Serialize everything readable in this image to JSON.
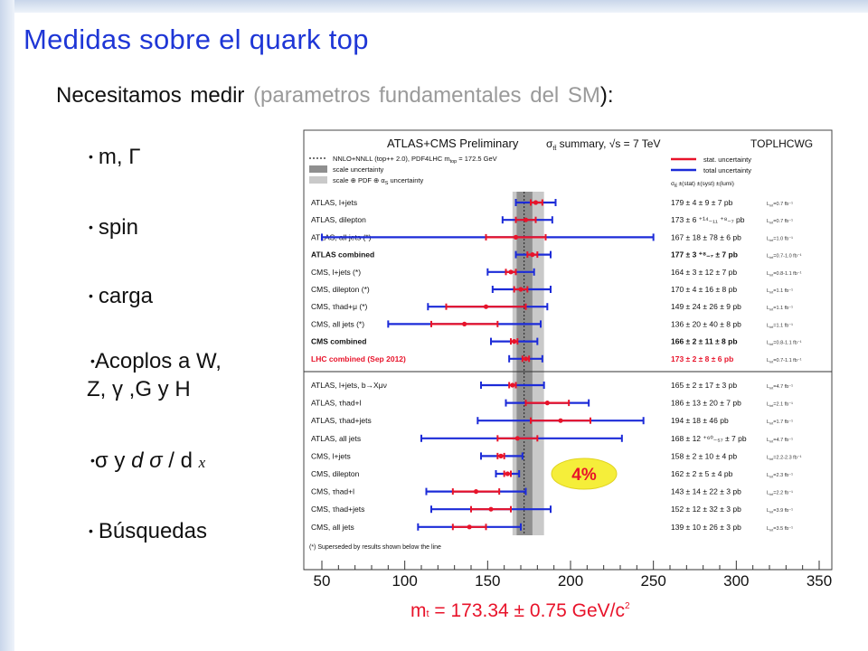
{
  "slide": {
    "title": "Medidas sobre el quark top",
    "subtitle_main": "Necesitamos medir ",
    "subtitle_paren": "(parametros fundamentales del SM",
    "subtitle_close": "):",
    "bullets": {
      "b1": "m, Γ",
      "b2": "spin",
      "b3": "carga",
      "b4_line1": "Acoplos a W,",
      "b4_line2": "Z, γ ,G y H",
      "b5_a": "σ y ",
      "b5_b": "d σ",
      "b5_c": " / d ",
      "b5_x": "x",
      "b6": "Búsquedas",
      "bullet_glyph": "•"
    },
    "result": {
      "m": "m",
      "sub": "t",
      "text": " = 173.34 ± 0.75 GeV/c",
      "sup": "2"
    }
  },
  "chart_data": {
    "type": "scatter",
    "title": "ATLAS+CMS Preliminary",
    "summary_label": "σ",
    "summary_sub": "tt̄",
    "summary_rest": " summary, √s = 7 TeV",
    "group_label": "TOPLHCWG",
    "legend": {
      "theory": "NNLO+NNLL (top++ 2.0), PDF4LHC m",
      "theory_sub": "top",
      "theory_end": " = 172.5 GeV",
      "scale": "scale uncertainty",
      "scale_pdf": "scale ⊕ PDF ⊕ α",
      "scale_pdf_sub": "S",
      "scale_pdf_end": " uncertainty",
      "stat": "stat. uncertainty",
      "total": "total uncertainty",
      "format": "σ",
      "format_sub": "tt̄",
      "format_rest": " ±(stat) ±(syst) ±(lumi)"
    },
    "colors": {
      "stat": "#e8132a",
      "total": "#1c2bd8",
      "band_scale": "#8f8f8f",
      "band_total": "#c9c9c9",
      "highlight": "#f5ee3a",
      "lhc": "#e8132a"
    },
    "x_ticks": [
      50,
      100,
      150,
      200,
      250,
      300,
      350
    ],
    "xlim": [
      50,
      350
    ],
    "theory": {
      "central": 172,
      "scale": [
        167.5,
        177
      ],
      "total": [
        165,
        184
      ]
    },
    "badge": "4%",
    "top_rows": [
      {
        "label": "ATLAS, l+jets",
        "value": 179,
        "stat": [
          176,
          183
        ],
        "total": [
          167,
          191
        ],
        "result": "179 ± 4 ± 9 ± 7 pb",
        "lumi": "L",
        "lumi_sub": "int",
        "lumi_val": "=0.7 fb⁻¹",
        "bold": false,
        "red": false
      },
      {
        "label": "ATLAS, dilepton",
        "value": 173,
        "stat": [
          167,
          179
        ],
        "total": [
          159,
          189
        ],
        "result": "173 ± 6 ⁺¹⁴₋₁₁ ⁺⁸₋₇ pb",
        "lumi": "L",
        "lumi_sub": "int",
        "lumi_val": "=0.7 fb⁻¹",
        "bold": false,
        "red": false
      },
      {
        "label": "ATLAS, all jets (*)",
        "value": 167,
        "stat": [
          149,
          185
        ],
        "total": [
          50,
          250
        ],
        "result": "167 ± 18 ± 78 ± 6 pb",
        "lumi": "L",
        "lumi_sub": "int",
        "lumi_val": "=1.0 fb⁻¹",
        "bold": false,
        "red": false
      },
      {
        "label": "ATLAS combined",
        "value": 177,
        "stat": [
          174,
          180
        ],
        "total": [
          167,
          188
        ],
        "result": "177 ± 3 ⁺⁸₋₇ ± 7 pb",
        "lumi": "L",
        "lumi_sub": "int",
        "lumi_val": "=0.7-1.0 fb⁻¹",
        "bold": true,
        "red": false
      },
      {
        "label": "CMS, l+jets (*)",
        "value": 164,
        "stat": [
          161,
          167
        ],
        "total": [
          150,
          178
        ],
        "result": "164 ± 3 ± 12 ± 7 pb",
        "lumi": "L",
        "lumi_sub": "int",
        "lumi_val": "=0.8-1.1 fb⁻¹",
        "bold": false,
        "red": false
      },
      {
        "label": "CMS, dilepton (*)",
        "value": 170,
        "stat": [
          166,
          174
        ],
        "total": [
          153,
          188
        ],
        "result": "170 ± 4 ± 16 ± 8 pb",
        "lumi": "L",
        "lumi_sub": "int",
        "lumi_val": "=1.1 fb⁻¹",
        "bold": false,
        "red": false
      },
      {
        "label": "CMS, τhad+μ (*)",
        "value": 149,
        "stat": [
          125,
          173
        ],
        "total": [
          114,
          186
        ],
        "result": "149 ± 24 ± 26 ± 9 pb",
        "lumi": "L",
        "lumi_sub": "int",
        "lumi_val": "=1.1 fb⁻¹",
        "bold": false,
        "red": false
      },
      {
        "label": "CMS, all jets (*)",
        "value": 136,
        "stat": [
          116,
          156
        ],
        "total": [
          90,
          182
        ],
        "result": "136 ± 20 ± 40 ± 8 pb",
        "lumi": "L",
        "lumi_sub": "int",
        "lumi_val": "=1.1 fb⁻¹",
        "bold": false,
        "red": false
      },
      {
        "label": "CMS combined",
        "value": 166,
        "stat": [
          164,
          168
        ],
        "total": [
          152,
          180
        ],
        "result": "166 ± 2 ± 11 ± 8 pb",
        "lumi": "L",
        "lumi_sub": "int",
        "lumi_val": "=0.8-1.1 fb⁻¹",
        "bold": true,
        "red": false
      },
      {
        "label": "LHC combined (Sep 2012)",
        "value": 173,
        "stat": [
          171,
          175
        ],
        "total": [
          163,
          183
        ],
        "result": "173 ± 2 ± 8 ± 6 pb",
        "lumi": "L",
        "lumi_sub": "int",
        "lumi_val": "=0.7-1.1 fb⁻¹",
        "bold": true,
        "red": true
      }
    ],
    "bottom_rows": [
      {
        "label": "ATLAS, l+jets, b→Xμν",
        "value": 165,
        "stat": [
          163,
          167
        ],
        "total": [
          146,
          184
        ],
        "result": "165 ± 2 ± 17 ± 3 pb",
        "lumi": "L",
        "lumi_sub": "int",
        "lumi_val": "=4.7 fb⁻¹",
        "bold": false,
        "red": false
      },
      {
        "label": "ATLAS, τhad+l",
        "value": 186,
        "stat": [
          173,
          199
        ],
        "total": [
          161,
          211
        ],
        "result": "186 ± 13 ± 20 ± 7 pb",
        "lumi": "L",
        "lumi_sub": "int",
        "lumi_val": "=2.1 fb⁻¹",
        "bold": false,
        "red": false
      },
      {
        "label": "ATLAS, τhad+jets",
        "value": 194,
        "stat": [
          176,
          212
        ],
        "total": [
          144,
          244
        ],
        "result": "194 ± 18 ± 46 pb",
        "lumi": "L",
        "lumi_sub": "int",
        "lumi_val": "=1.7 fb⁻¹",
        "bold": false,
        "red": false
      },
      {
        "label": "ATLAS, all jets",
        "value": 168,
        "stat": [
          156,
          180
        ],
        "total": [
          110,
          231
        ],
        "result": "168 ± 12 ⁺⁶⁰₋₅₇ ± 7 pb",
        "lumi": "L",
        "lumi_sub": "int",
        "lumi_val": "=4.7 fb⁻¹",
        "bold": false,
        "red": false
      },
      {
        "label": "CMS, l+jets",
        "value": 158,
        "stat": [
          156,
          160
        ],
        "total": [
          146,
          171
        ],
        "result": "158 ± 2 ± 10 ± 4 pb",
        "lumi": "L",
        "lumi_sub": "int",
        "lumi_val": "=2.2-2.3 fb⁻¹",
        "bold": false,
        "red": false
      },
      {
        "label": "CMS, dilepton",
        "value": 162,
        "stat": [
          160,
          164
        ],
        "total": [
          155,
          169
        ],
        "result": "162 ± 2 ± 5 ± 4 pb",
        "lumi": "L",
        "lumi_sub": "int",
        "lumi_val": "=2.3 fb⁻¹",
        "bold": false,
        "red": false
      },
      {
        "label": "CMS, τhad+l",
        "value": 143,
        "stat": [
          129,
          157
        ],
        "total": [
          113,
          173
        ],
        "result": "143 ± 14 ± 22 ± 3 pb",
        "lumi": "L",
        "lumi_sub": "int",
        "lumi_val": "=2.2 fb⁻¹",
        "bold": false,
        "red": false
      },
      {
        "label": "CMS, τhad+jets",
        "value": 152,
        "stat": [
          140,
          164
        ],
        "total": [
          116,
          188
        ],
        "result": "152 ± 12 ± 32 ± 3 pb",
        "lumi": "L",
        "lumi_sub": "int",
        "lumi_val": "=3.9 fb⁻¹",
        "bold": false,
        "red": false
      },
      {
        "label": "CMS, all jets",
        "value": 139,
        "stat": [
          129,
          149
        ],
        "total": [
          108,
          170
        ],
        "result": "139 ± 10 ± 26 ± 3 pb",
        "lumi": "L",
        "lumi_sub": "int",
        "lumi_val": "=3.5 fb⁻¹",
        "bold": false,
        "red": false
      }
    ],
    "footnote": "(*) Superseded by results shown below the line"
  }
}
